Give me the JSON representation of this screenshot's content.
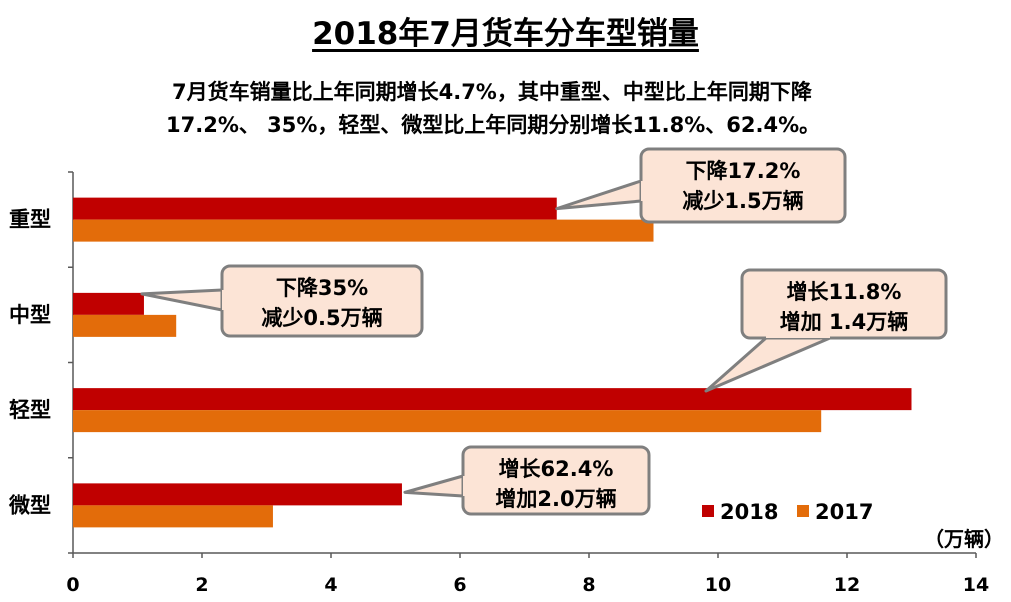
{
  "title": "2018年7月货车分车型销量",
  "subtitle": {
    "line1": "7月货车销量比上年同期增长4.7%，其中重型、中型比上年同期下降",
    "line2": "17.2%、 35%，轻型、微型比上年同期分别增长11.8%、62.4%。"
  },
  "colors": {
    "s2018": "#C00000",
    "s2017": "#E36C0A",
    "callout_fill": "#FCE4D6",
    "callout_stroke": "#7F7F7F",
    "axis": "#595959"
  },
  "chart_data": {
    "type": "bar",
    "orientation": "horizontal",
    "categories": [
      "重型",
      "中型",
      "轻型",
      "微型"
    ],
    "series": [
      {
        "name": "2018",
        "values": [
          7.5,
          1.1,
          13.0,
          5.1
        ]
      },
      {
        "name": "2017",
        "values": [
          9.0,
          1.6,
          11.6,
          3.1
        ]
      }
    ],
    "xlim": [
      0,
      14
    ],
    "xticks": [
      "0",
      "2",
      "4",
      "6",
      "8",
      "10",
      "12",
      "14"
    ],
    "unit_label": "（万辆）",
    "legend_position": "bottom-right",
    "annotations": [
      {
        "line1": "下降17.2%",
        "line2": "减少1.5万辆",
        "category": "重型"
      },
      {
        "line1": "下降35%",
        "line2": "减少0.5万辆",
        "category": "中型"
      },
      {
        "line1": "增长11.8%",
        "line2": "增加 1.4万辆",
        "category": "轻型"
      },
      {
        "line1": "增长62.4%",
        "line2": "增加2.0万辆",
        "category": "微型"
      }
    ]
  }
}
